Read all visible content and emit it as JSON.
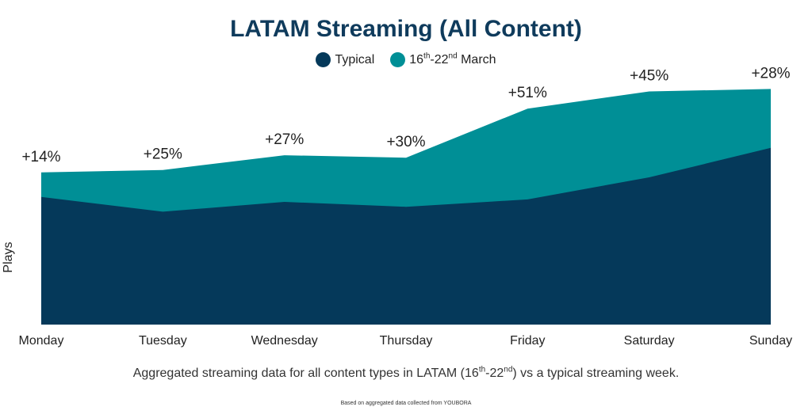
{
  "chart_data": {
    "type": "area",
    "title": "LATAM Streaming (All Content)",
    "categories": [
      "Monday",
      "Tuesday",
      "Wednesday",
      "Thursday",
      "Friday",
      "Saturday",
      "Sunday"
    ],
    "series": [
      {
        "name": "Typical",
        "color": "#05395a",
        "values": [
          52,
          46,
          50,
          48,
          51,
          60,
          72
        ]
      },
      {
        "name": "16th-22nd March",
        "color": "#008f96",
        "values": [
          62,
          63,
          69,
          68,
          88,
          95,
          96
        ]
      }
    ],
    "data_labels": [
      "+14%",
      "+25%",
      "+27%",
      "+30%",
      "+51%",
      "+45%",
      "+28%"
    ],
    "ylabel": "Plays",
    "xlabel": "",
    "ylim": [
      0,
      100
    ],
    "grid": false,
    "legend_position": "top-center"
  },
  "legend": {
    "typical": {
      "label": "Typical"
    },
    "march": {
      "num_start": "16",
      "sup_start": "th",
      "sep": "-22",
      "sup_end": "nd",
      "suffix": " March"
    }
  },
  "caption": {
    "before": "Aggregated streaming data for all content types in LATAM (16",
    "sup1": "th",
    "mid": "-22",
    "sup2": "nd",
    "after": ") vs a typical streaming week."
  },
  "source": "Based on aggregated data collected from YOUBORA"
}
